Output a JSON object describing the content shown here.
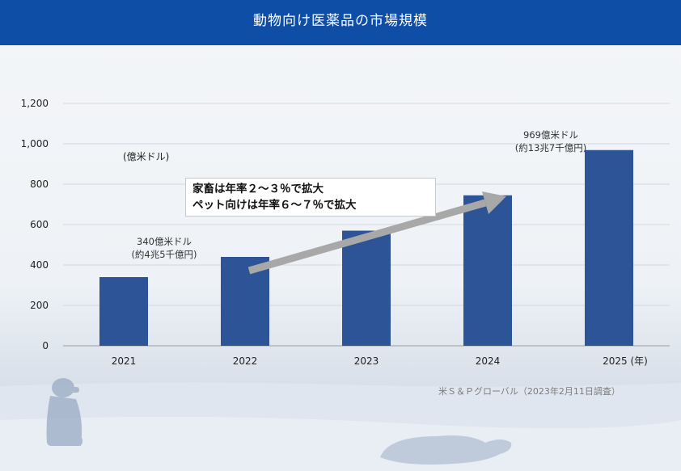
{
  "header": {
    "title": "動物向け医薬品の市場規模"
  },
  "chart_data": {
    "type": "bar",
    "title": "動物向け医薬品の市場規模",
    "unit_label": "(億米ドル)",
    "categories": [
      "2021",
      "2022",
      "2023",
      "2024",
      "2025"
    ],
    "category_suffix": "(年)",
    "values": [
      340,
      440,
      570,
      745,
      969
    ],
    "ylim": [
      0,
      1200
    ],
    "yticks": [
      "0",
      "200",
      "400",
      "600",
      "800",
      "1,000",
      "1,200"
    ],
    "ytick_values": [
      0,
      200,
      400,
      600,
      800,
      1000,
      1200
    ],
    "grid": true,
    "bar_color": "#2d5496",
    "annotations": [
      {
        "category": "2021",
        "line1": "340億米ドル",
        "line2": "(約4兆5千億円)"
      },
      {
        "category": "2025",
        "line1": "969億米ドル",
        "line2": "(約13兆7千億円)"
      }
    ],
    "callout": {
      "line1": "家畜は年率２～３％で拡大",
      "line2": "ペット向けは年率６～７％で拡大"
    },
    "arrow_color": "#a8a8a8"
  },
  "source": "米Ｓ＆Ｐグローバル（2023年2月11日調査）",
  "colors": {
    "header": "#0f4ea6",
    "bar": "#2d5496",
    "arrow": "#a8a8a8"
  }
}
